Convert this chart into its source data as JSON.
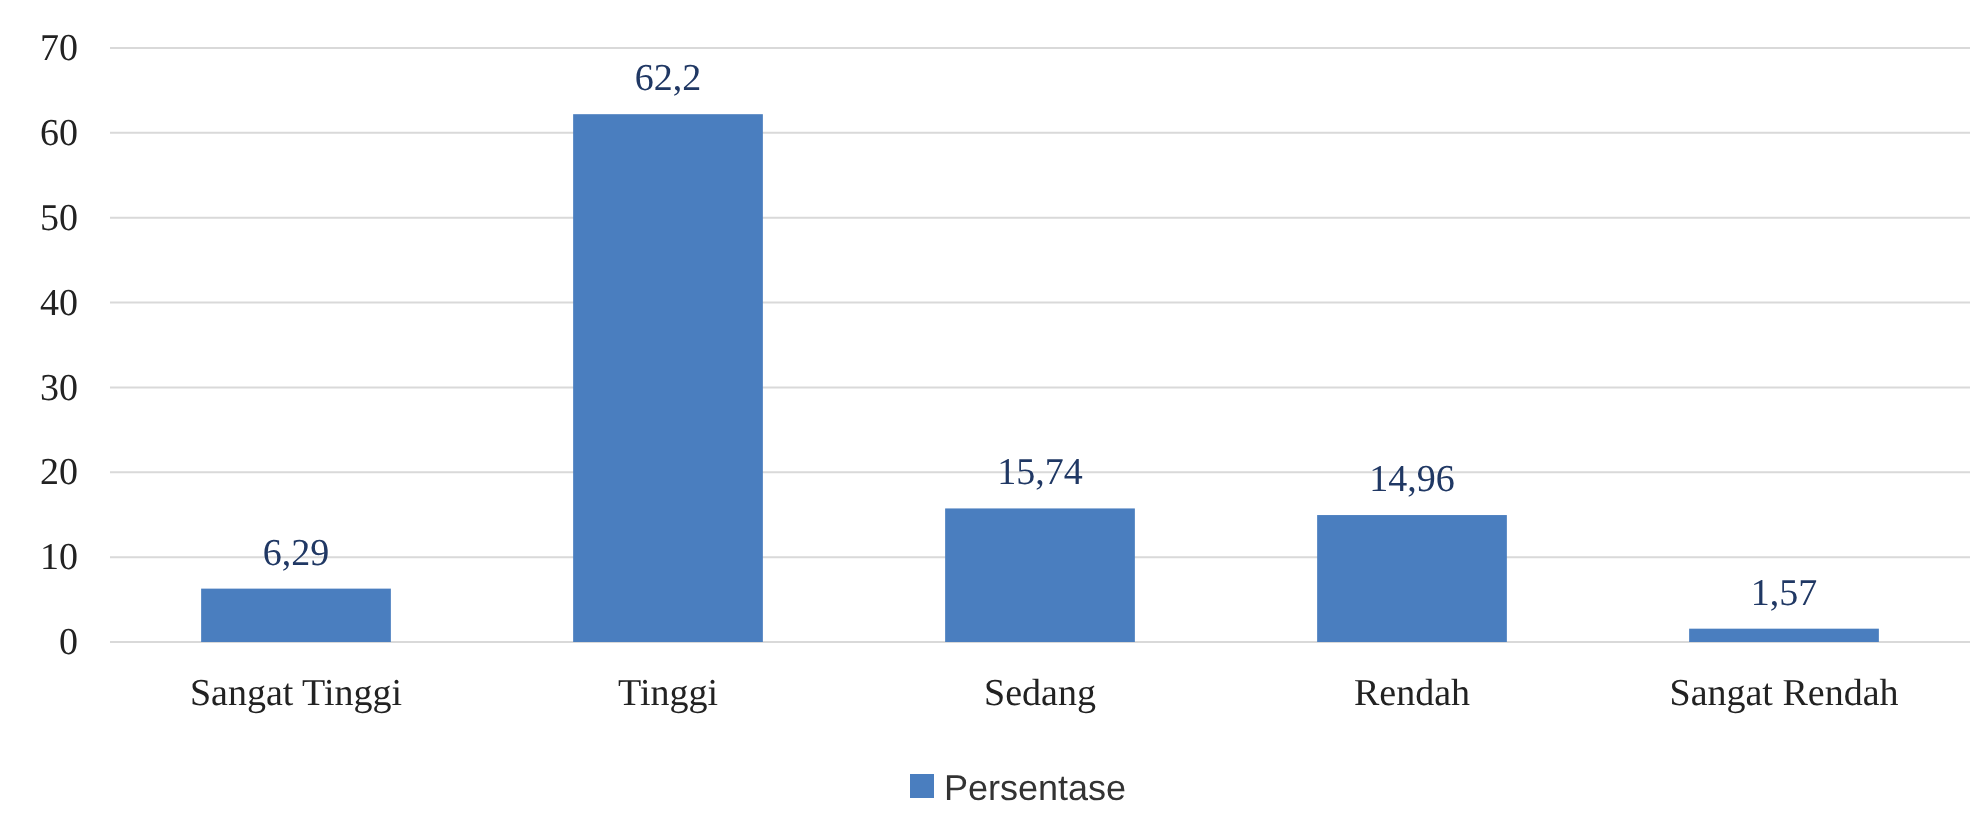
{
  "chart_data": {
    "type": "bar",
    "categories": [
      "Sangat Tinggi",
      "Tinggi",
      "Sedang",
      "Rendah",
      "Sangat Rendah"
    ],
    "series": [
      {
        "name": "Persentase",
        "color": "#4a7ebf",
        "values": [
          6.29,
          62.2,
          15.74,
          14.96,
          1.57
        ],
        "value_labels": [
          "6,29",
          "62,2",
          "15,74",
          "14,96",
          "1,57"
        ]
      }
    ],
    "ylim": [
      0,
      70
    ],
    "yticks": [
      0,
      10,
      20,
      30,
      40,
      50,
      60,
      70
    ],
    "grid": "y",
    "legend": "bottom"
  }
}
